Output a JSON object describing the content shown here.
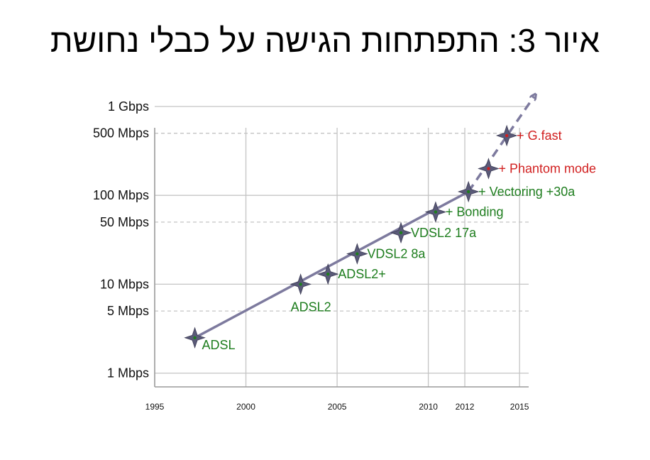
{
  "title": "איור 3: התפתחות הגישה על כבלי נחושת",
  "chart_data": {
    "type": "scatter",
    "title": "איור 3: התפתחות הגישה על כבלי נחושת",
    "y_scale": "log",
    "y_unit": "Mbps",
    "ylim": [
      0.7,
      1000
    ],
    "xlim": [
      1995,
      2015.5
    ],
    "y_ticks": [
      {
        "value": 1000,
        "label": "1 Gbps",
        "grid": "solid"
      },
      {
        "value": 500,
        "label": "500 Mbps",
        "grid": "dashed"
      },
      {
        "value": 100,
        "label": "100 Mbps",
        "grid": "solid"
      },
      {
        "value": 50,
        "label": "50 Mbps",
        "grid": "dashed"
      },
      {
        "value": 10,
        "label": "10 Mbps",
        "grid": "solid"
      },
      {
        "value": 5,
        "label": "5 Mbps",
        "grid": "dashed"
      },
      {
        "value": 1,
        "label": "1 Mbps",
        "grid": "solid"
      }
    ],
    "x_ticks": [
      {
        "value": 1995,
        "label": "1995"
      },
      {
        "value": 2000,
        "label": "2000"
      },
      {
        "value": 2005,
        "label": "2005"
      },
      {
        "value": 2010,
        "label": "2010"
      },
      {
        "value": 2012,
        "label": "2012"
      },
      {
        "value": 2015,
        "label": "2015"
      }
    ],
    "colors": {
      "existing": "#1e7d1e",
      "future": "#d11f1f",
      "star": "#5a5a78",
      "trend": "#7d7a9e"
    },
    "points": [
      {
        "label": "ADSL",
        "year": 1997.2,
        "mbps": 2.5,
        "status": "existing",
        "label_pos": "below-right"
      },
      {
        "label": "ADSL2",
        "year": 2003,
        "mbps": 10,
        "status": "existing",
        "label_pos": "below"
      },
      {
        "label": "ADSL2+",
        "year": 2004.5,
        "mbps": 13,
        "status": "existing",
        "label_pos": "right"
      },
      {
        "label": "VDSL2 8a",
        "year": 2006.1,
        "mbps": 22,
        "status": "existing",
        "label_pos": "right"
      },
      {
        "label": "VDSL2 17a",
        "year": 2008.5,
        "mbps": 38,
        "status": "existing",
        "label_pos": "right"
      },
      {
        "label": "+ Bonding",
        "year": 2010.4,
        "mbps": 65,
        "status": "existing",
        "label_pos": "right"
      },
      {
        "label": "+ Vectoring +30a",
        "year": 2012.2,
        "mbps": 110,
        "status": "existing",
        "label_pos": "right"
      },
      {
        "label": "+ Phantom mode",
        "year": 2013.3,
        "mbps": 200,
        "status": "future",
        "label_pos": "right"
      },
      {
        "label": "+ G.fast",
        "year": 2014.3,
        "mbps": 470,
        "status": "future",
        "label_pos": "right"
      }
    ],
    "trend": {
      "solid": {
        "from": {
          "year": 1997.2,
          "mbps": 2.5
        },
        "to": {
          "year": 2012.2,
          "mbps": 110
        }
      },
      "dashed": {
        "from": {
          "year": 2012.2,
          "mbps": 110
        },
        "to": {
          "year": 2015.8,
          "mbps": 1300
        }
      }
    },
    "grid": {
      "vertical": true,
      "horizontal": true
    }
  }
}
